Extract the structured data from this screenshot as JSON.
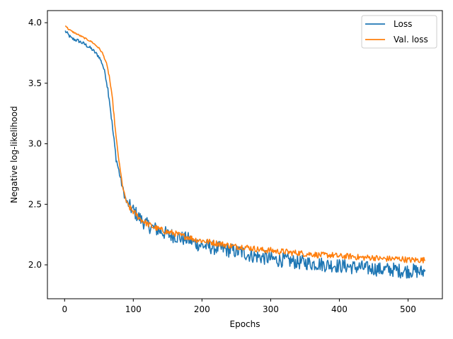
{
  "chart_data": {
    "type": "line",
    "title": "",
    "xlabel": "Epochs",
    "ylabel": "Negative log-likelihood",
    "xlim": [
      -25,
      550
    ],
    "ylim": [
      1.72,
      4.1
    ],
    "xticks": [
      0,
      100,
      200,
      300,
      400,
      500
    ],
    "yticks": [
      2.0,
      2.5,
      3.0,
      3.5,
      4.0
    ],
    "xtick_labels": [
      "0",
      "100",
      "200",
      "300",
      "400",
      "500"
    ],
    "ytick_labels": [
      "2.0",
      "2.5",
      "3.0",
      "3.5",
      "4.0"
    ],
    "grid": false,
    "legend_position": "top-right",
    "series": [
      {
        "name": "Loss",
        "color": "#1f77b4",
        "x": [
          1,
          10,
          20,
          30,
          40,
          50,
          55,
          60,
          65,
          70,
          75,
          80,
          85,
          90,
          95,
          100,
          110,
          120,
          130,
          140,
          150,
          160,
          170,
          180,
          190,
          200,
          210,
          220,
          230,
          240,
          250,
          260,
          270,
          280,
          290,
          300,
          310,
          320,
          330,
          340,
          350,
          360,
          370,
          380,
          390,
          400,
          410,
          420,
          430,
          440,
          450,
          460,
          470,
          480,
          490,
          500,
          510,
          520,
          525
        ],
        "y": [
          3.93,
          3.87,
          3.85,
          3.82,
          3.78,
          3.72,
          3.66,
          3.56,
          3.38,
          3.12,
          2.88,
          2.75,
          2.62,
          2.52,
          2.48,
          2.45,
          2.38,
          2.33,
          2.3,
          2.28,
          2.25,
          2.24,
          2.22,
          2.21,
          2.18,
          2.16,
          2.15,
          2.14,
          2.13,
          2.12,
          2.11,
          2.1,
          2.08,
          2.07,
          2.06,
          2.05,
          2.04,
          2.04,
          2.03,
          2.02,
          2.02,
          2.01,
          2.01,
          2.0,
          2.0,
          1.99,
          1.99,
          1.98,
          1.98,
          1.97,
          1.97,
          1.96,
          1.96,
          1.96,
          1.95,
          1.95,
          1.95,
          1.94,
          1.95
        ],
        "noise_amplitude": 0.06
      },
      {
        "name": "Val. loss",
        "color": "#ff7f0e",
        "x": [
          1,
          5,
          10,
          20,
          30,
          40,
          50,
          55,
          60,
          65,
          70,
          75,
          80,
          85,
          90,
          95,
          100,
          110,
          120,
          130,
          140,
          150,
          160,
          170,
          180,
          190,
          200,
          210,
          220,
          230,
          240,
          250,
          260,
          270,
          280,
          290,
          300,
          310,
          320,
          330,
          340,
          350,
          360,
          370,
          380,
          390,
          400,
          410,
          420,
          430,
          440,
          450,
          460,
          470,
          480,
          490,
          500,
          510,
          520,
          525
        ],
        "y": [
          3.98,
          3.95,
          3.93,
          3.9,
          3.87,
          3.84,
          3.79,
          3.75,
          3.68,
          3.56,
          3.35,
          3.05,
          2.82,
          2.63,
          2.52,
          2.47,
          2.44,
          2.38,
          2.34,
          2.31,
          2.29,
          2.27,
          2.26,
          2.24,
          2.23,
          2.21,
          2.2,
          2.19,
          2.18,
          2.17,
          2.16,
          2.15,
          2.15,
          2.14,
          2.13,
          2.12,
          2.12,
          2.11,
          2.11,
          2.1,
          2.1,
          2.09,
          2.09,
          2.08,
          2.08,
          2.08,
          2.07,
          2.07,
          2.07,
          2.06,
          2.06,
          2.06,
          2.05,
          2.05,
          2.05,
          2.05,
          2.04,
          2.04,
          2.04,
          2.04
        ],
        "noise_amplitude": 0.025
      }
    ]
  }
}
